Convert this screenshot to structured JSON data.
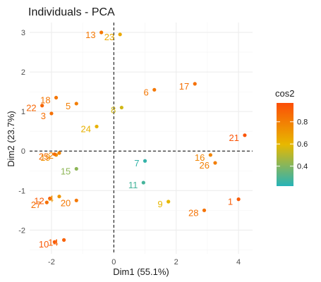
{
  "chart_data": {
    "type": "scatter",
    "title": "Individuals - PCA",
    "xlabel": "Dim1 (55.1%)",
    "ylabel": "Dim2 (23.7%)",
    "xlim": [
      -2.7,
      4.45
    ],
    "ylim": [
      -2.6,
      3.25
    ],
    "xticks": [
      -2,
      0,
      2,
      4
    ],
    "yticks": [
      -2,
      -1,
      0,
      1,
      2,
      3
    ],
    "grid": true,
    "reference_lines": {
      "x": 0,
      "y": 0,
      "style": "dashed"
    },
    "legend": {
      "title": "cos2",
      "position": "right",
      "ticks": [
        0.4,
        0.6,
        0.8
      ],
      "range": [
        0.22,
        0.97
      ],
      "colors": [
        "#26b3b8",
        "#e7b800",
        "#fc4e07"
      ]
    },
    "points": [
      {
        "label": "1",
        "x": 4.0,
        "y": -1.22,
        "cos2": 0.92
      },
      {
        "label": "2",
        "x": -1.75,
        "y": -0.05,
        "cos2": 0.78
      },
      {
        "label": "3",
        "x": -2.0,
        "y": 0.95,
        "cos2": 0.85
      },
      {
        "label": "4",
        "x": -1.75,
        "y": -1.15,
        "cos2": 0.72
      },
      {
        "label": "5",
        "x": -1.2,
        "y": 1.2,
        "cos2": 0.8
      },
      {
        "label": "6",
        "x": 1.3,
        "y": 1.55,
        "cos2": 0.82
      },
      {
        "label": "7",
        "x": 1.0,
        "y": -0.25,
        "cos2": 0.25
      },
      {
        "label": "8",
        "x": 0.25,
        "y": 1.1,
        "cos2": 0.55
      },
      {
        "label": "9",
        "x": 1.75,
        "y": -1.28,
        "cos2": 0.6
      },
      {
        "label": "10",
        "x": -1.9,
        "y": -2.3,
        "cos2": 0.93
      },
      {
        "label": "11",
        "x": 0.95,
        "y": -0.8,
        "cos2": 0.28
      },
      {
        "label": "12",
        "x": -2.05,
        "y": -1.2,
        "cos2": 0.92
      },
      {
        "label": "13",
        "x": -0.4,
        "y": 3.0,
        "cos2": 0.82
      },
      {
        "label": "14",
        "x": -1.6,
        "y": -2.25,
        "cos2": 0.9
      },
      {
        "label": "15",
        "x": -1.2,
        "y": -0.45,
        "cos2": 0.42
      },
      {
        "label": "16",
        "x": 3.1,
        "y": -0.1,
        "cos2": 0.78
      },
      {
        "label": "17",
        "x": 2.6,
        "y": 1.7,
        "cos2": 0.85
      },
      {
        "label": "18",
        "x": -1.85,
        "y": 1.35,
        "cos2": 0.83
      },
      {
        "label": "19",
        "x": -1.85,
        "y": -0.1,
        "cos2": 0.73
      },
      {
        "label": "20",
        "x": -1.2,
        "y": -1.25,
        "cos2": 0.82
      },
      {
        "label": "21",
        "x": 4.2,
        "y": 0.4,
        "cos2": 0.95
      },
      {
        "label": "22",
        "x": -2.3,
        "y": 1.15,
        "cos2": 0.88
      },
      {
        "label": "23",
        "x": 0.2,
        "y": 2.95,
        "cos2": 0.65
      },
      {
        "label": "24",
        "x": -0.55,
        "y": 0.62,
        "cos2": 0.62
      },
      {
        "label": "25",
        "x": -1.9,
        "y": -0.08,
        "cos2": 0.86
      },
      {
        "label": "26",
        "x": 3.25,
        "y": -0.3,
        "cos2": 0.8
      },
      {
        "label": "27",
        "x": -2.15,
        "y": -1.3,
        "cos2": 0.85
      },
      {
        "label": "28",
        "x": 2.9,
        "y": -1.5,
        "cos2": 0.84
      }
    ]
  }
}
